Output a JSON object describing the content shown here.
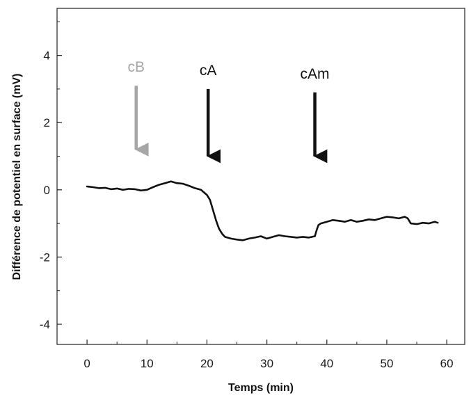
{
  "chart_data": {
    "type": "line",
    "title": "",
    "xlabel": "Temps (min)",
    "ylabel": "Différence de potentiel en surface (mV)",
    "xlim": [
      -5,
      63
    ],
    "ylim": [
      -4.6,
      5.4
    ],
    "xticks": [
      0,
      10,
      20,
      30,
      40,
      50,
      60
    ],
    "yticks": [
      -4,
      -2,
      0,
      2,
      4
    ],
    "grid": false,
    "legend": "none",
    "colors": {
      "line": "#111111",
      "axis": "#222222",
      "arrow_cB": "#a6a6a6",
      "arrow_cA": "#111111",
      "arrow_cAm": "#111111"
    },
    "series": [
      {
        "x": [
          0,
          1,
          2,
          3,
          4,
          5,
          6,
          7,
          8,
          9,
          10,
          11,
          12,
          13,
          14,
          15,
          16,
          17,
          18,
          19,
          20,
          20.5,
          21,
          21.5,
          22,
          22.5,
          23,
          24,
          25,
          26,
          27,
          28,
          29,
          30,
          31,
          32,
          33,
          34,
          35,
          36,
          37,
          38,
          38.3,
          38.6,
          39,
          40,
          41,
          42,
          43,
          44,
          45,
          46,
          47,
          48,
          49,
          50,
          51,
          52,
          53,
          53.5,
          54,
          55,
          56,
          57,
          58,
          58.5
        ],
        "y": [
          0.1,
          0.08,
          0.05,
          0.06,
          0.02,
          0.04,
          0.0,
          0.03,
          0.02,
          -0.02,
          0.0,
          0.08,
          0.15,
          0.2,
          0.25,
          0.2,
          0.18,
          0.12,
          0.05,
          0.0,
          -0.15,
          -0.3,
          -0.6,
          -0.9,
          -1.15,
          -1.3,
          -1.4,
          -1.45,
          -1.48,
          -1.5,
          -1.45,
          -1.42,
          -1.38,
          -1.45,
          -1.4,
          -1.35,
          -1.38,
          -1.4,
          -1.42,
          -1.4,
          -1.42,
          -1.38,
          -1.2,
          -1.05,
          -1.0,
          -0.95,
          -0.9,
          -0.92,
          -0.95,
          -0.9,
          -0.95,
          -0.92,
          -0.88,
          -0.9,
          -0.85,
          -0.8,
          -0.82,
          -0.85,
          -0.8,
          -0.85,
          -1.0,
          -1.02,
          -0.98,
          -1.0,
          -0.95,
          -0.98
        ]
      }
    ],
    "annotations": [
      {
        "text": "cB",
        "x": 8.2,
        "y_top": 3.1,
        "y_bottom": 1.2,
        "color": "#a6a6a6"
      },
      {
        "text": "cA",
        "x": 20.2,
        "y_top": 3.0,
        "y_bottom": 1.0,
        "color": "#111111"
      },
      {
        "text": "cAm",
        "x": 38.0,
        "y_top": 2.9,
        "y_bottom": 1.0,
        "color": "#111111"
      }
    ]
  }
}
